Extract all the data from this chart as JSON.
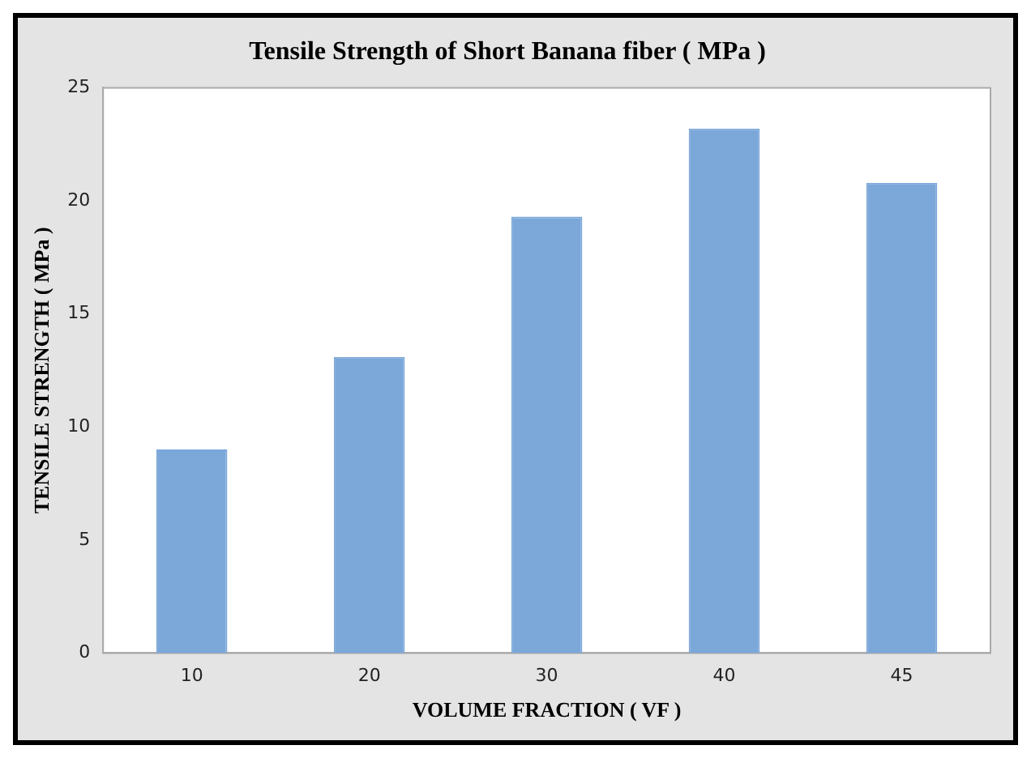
{
  "chart_data": {
    "type": "bar",
    "title": "Tensile Strength of Short Banana fiber ( MPa )",
    "xlabel": "VOLUME FRACTION ( VF )",
    "ylabel": "TENSILE STRENGTH ( MPa )",
    "categories": [
      "10",
      "20",
      "30",
      "40",
      "45"
    ],
    "values": [
      9.0,
      13.1,
      19.3,
      23.2,
      20.8
    ],
    "color": "#7ba7d9",
    "ylim": [
      0,
      25
    ],
    "yticks": [
      0,
      5,
      10,
      15,
      20,
      25
    ],
    "grid": false,
    "legend": false
  }
}
